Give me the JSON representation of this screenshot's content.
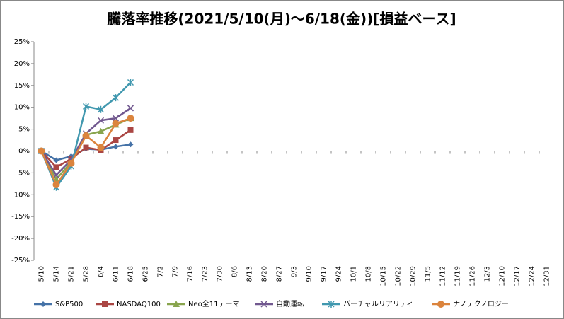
{
  "chart_data": {
    "type": "line",
    "title": "騰落率推移(2021/5/10(月)～6/18(金))[損益ベース]",
    "categories": [
      "5/10",
      "5/14",
      "5/21",
      "5/28",
      "6/4",
      "6/11",
      "6/18",
      "6/25",
      "7/2",
      "7/9",
      "7/16",
      "7/23",
      "7/30",
      "8/6",
      "8/13",
      "8/20",
      "8/27",
      "9/3",
      "9/10",
      "9/17",
      "9/24",
      "10/1",
      "10/8",
      "10/15",
      "10/22",
      "10/29",
      "11/5",
      "11/12",
      "11/19",
      "11/26",
      "12/3",
      "12/10",
      "12/17",
      "12/24",
      "12/31"
    ],
    "series": [
      {
        "name": "S&P500",
        "color": "#4572A7",
        "marker": "diamond",
        "values": [
          0,
          -2.1,
          -1.2,
          0.5,
          0.3,
          1,
          1.5,
          null,
          null,
          null,
          null,
          null,
          null,
          null,
          null,
          null,
          null,
          null,
          null,
          null,
          null,
          null,
          null,
          null,
          null,
          null,
          null,
          null,
          null,
          null,
          null,
          null,
          null,
          null,
          null
        ]
      },
      {
        "name": "NASDAQ100",
        "color": "#AA4643",
        "marker": "square",
        "values": [
          0,
          -3.7,
          -1.8,
          0.8,
          0.2,
          2.5,
          4.8,
          null,
          null,
          null,
          null,
          null,
          null,
          null,
          null,
          null,
          null,
          null,
          null,
          null,
          null,
          null,
          null,
          null,
          null,
          null,
          null,
          null,
          null,
          null,
          null,
          null,
          null,
          null,
          null
        ]
      },
      {
        "name": "Neo全11テーマ",
        "color": "#89A54E",
        "marker": "triangle",
        "values": [
          0,
          -6.5,
          -2.5,
          3.7,
          4.5,
          6,
          7.5,
          null,
          null,
          null,
          null,
          null,
          null,
          null,
          null,
          null,
          null,
          null,
          null,
          null,
          null,
          null,
          null,
          null,
          null,
          null,
          null,
          null,
          null,
          null,
          null,
          null,
          null,
          null,
          null
        ]
      },
      {
        "name": "自動運転",
        "color": "#71588F",
        "marker": "x",
        "values": [
          0,
          -5.5,
          -2,
          4,
          7,
          7.5,
          9.8,
          null,
          null,
          null,
          null,
          null,
          null,
          null,
          null,
          null,
          null,
          null,
          null,
          null,
          null,
          null,
          null,
          null,
          null,
          null,
          null,
          null,
          null,
          null,
          null,
          null,
          null,
          null,
          null
        ]
      },
      {
        "name": "バーチャルリアリティ",
        "color": "#4198AF",
        "marker": "star",
        "values": [
          0,
          -8.3,
          -3.5,
          10.2,
          9.5,
          12.2,
          15.7,
          null,
          null,
          null,
          null,
          null,
          null,
          null,
          null,
          null,
          null,
          null,
          null,
          null,
          null,
          null,
          null,
          null,
          null,
          null,
          null,
          null,
          null,
          null,
          null,
          null,
          null,
          null,
          null
        ]
      },
      {
        "name": "ナノテクノロジー",
        "color": "#DB843D",
        "marker": "circle",
        "values": [
          0,
          -7.7,
          -2.8,
          3.5,
          0.8,
          6.3,
          7.5,
          null,
          null,
          null,
          null,
          null,
          null,
          null,
          null,
          null,
          null,
          null,
          null,
          null,
          null,
          null,
          null,
          null,
          null,
          null,
          null,
          null,
          null,
          null,
          null,
          null,
          null,
          null,
          null
        ]
      }
    ],
    "ylim": [
      -25,
      25
    ],
    "yticks": [
      {
        "value": -25,
        "label": "-25%"
      },
      {
        "value": -20,
        "label": "-20%"
      },
      {
        "value": -15,
        "label": "-15%"
      },
      {
        "value": -10,
        "label": "-10%"
      },
      {
        "value": -5,
        "label": "-5%"
      },
      {
        "value": 0,
        "label": "0%"
      },
      {
        "value": 5,
        "label": "5%"
      },
      {
        "value": 10,
        "label": "10%"
      },
      {
        "value": 15,
        "label": "15%"
      },
      {
        "value": 20,
        "label": "20%"
      },
      {
        "value": 25,
        "label": "25%"
      }
    ],
    "grid": false,
    "legend": "bottom"
  }
}
